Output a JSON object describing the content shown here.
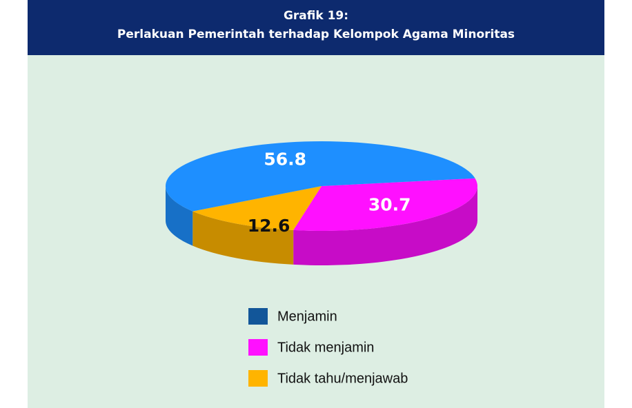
{
  "chart_data": {
    "type": "pie",
    "title": "Grafik 19:",
    "subtitle": "Perlakuan Pemerintah terhadap Kelompok Agama Minoritas",
    "categories": [
      "Menjamin",
      "Tidak menjamin",
      "Tidak tahu/menjawab"
    ],
    "values": [
      56.8,
      30.7,
      12.6
    ],
    "colors": [
      "#1e8fff",
      "#ff10ff",
      "#ffb400"
    ],
    "legend": "bottom"
  }
}
